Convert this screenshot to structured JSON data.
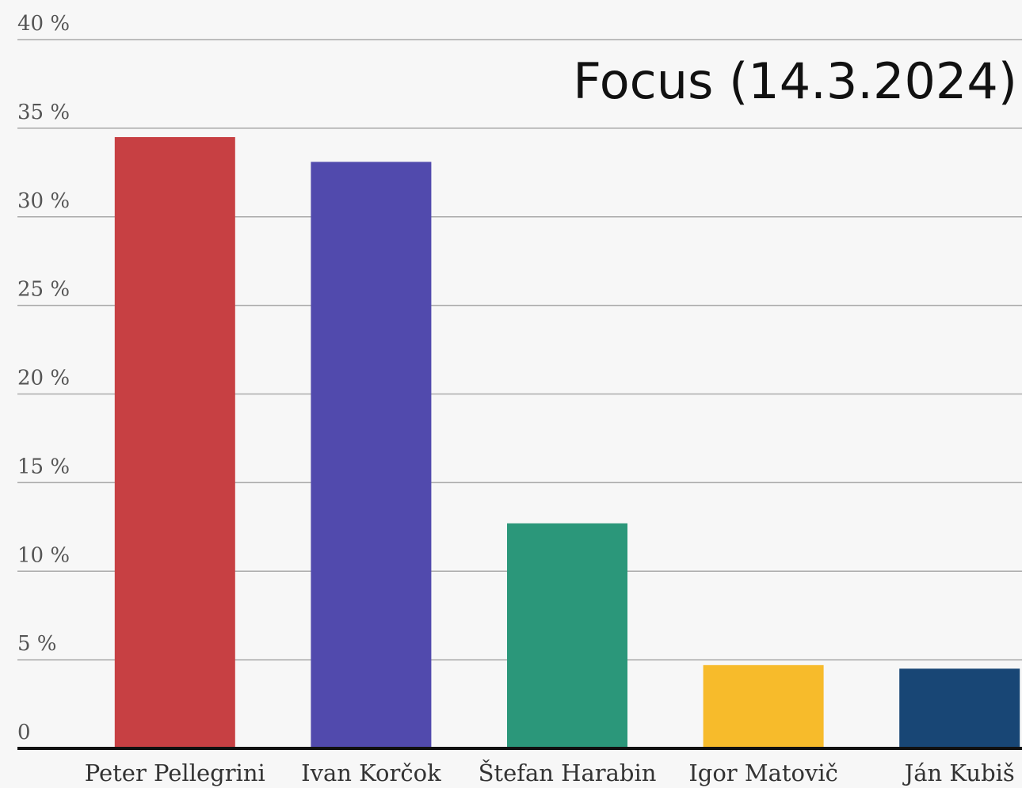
{
  "chart_data": {
    "type": "bar",
    "title": "Focus (14.3.2024)",
    "categories": [
      "Peter Pellegrini",
      "Ivan Korčok",
      "Štefan Harabin",
      "Igor Matovič",
      "Ján Kubiš"
    ],
    "values": [
      34.5,
      33.1,
      12.7,
      4.7,
      4.5
    ],
    "colors": [
      "#c74043",
      "#514aad",
      "#2b977a",
      "#f7bb2b",
      "#184675"
    ],
    "ylim": [
      0,
      40
    ],
    "yticks": [
      0,
      {
        "value": 5,
        "label": "5 %"
      },
      {
        "value": 10,
        "label": "10 %"
      },
      {
        "value": 15,
        "label": "15 %"
      },
      {
        "value": 20,
        "label": "20 %"
      },
      {
        "value": 25,
        "label": "25 %"
      },
      {
        "value": 30,
        "label": "30 %"
      },
      {
        "value": 35,
        "label": "35 %"
      },
      {
        "value": 40,
        "label": "40 %"
      }
    ],
    "grid": true
  }
}
